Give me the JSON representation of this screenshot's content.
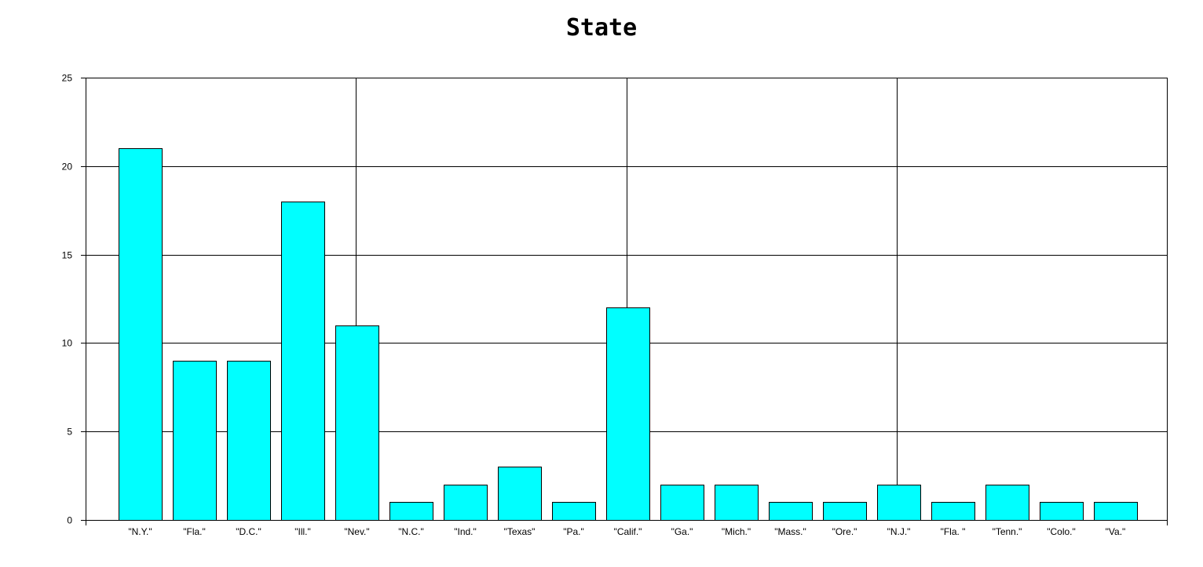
{
  "chart_data": {
    "type": "bar",
    "title": "State",
    "xlabel": "",
    "ylabel": "",
    "categories": [
      "\"N.Y.\"",
      "\"Fla.\"",
      "\"D.C.\"",
      "\"Ill.\"",
      "\"Nev.\"",
      "\"N.C.\"",
      "\"Ind.\"",
      "\"Texas\"",
      "\"Pa.\"",
      "\"Calif.\"",
      "\"Ga.\"",
      "\"Mich.\"",
      "\"Mass.\"",
      "\"Ore.\"",
      "\"N.J.\"",
      "\"Fla. \"",
      "\"Tenn.\"",
      "\"Colo.\"",
      "\"Va.\""
    ],
    "values": [
      21,
      9,
      9,
      18,
      11,
      1,
      2,
      3,
      1,
      12,
      2,
      2,
      1,
      1,
      2,
      1,
      2,
      1,
      1
    ],
    "ylim": [
      0,
      25
    ],
    "yticks": [
      0,
      5,
      10,
      15,
      20,
      25
    ],
    "grid": true,
    "legend": "none",
    "bar_color": "#00FFFF",
    "bar_edge_color": "#000000"
  }
}
